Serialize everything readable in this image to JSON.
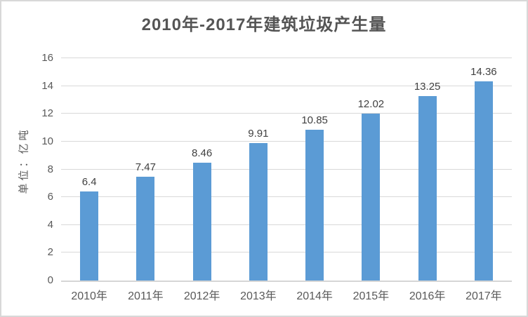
{
  "chart_data": {
    "type": "bar",
    "title": "2010年-2017年建筑垃圾产生量",
    "ylabel": "单位：亿吨",
    "xlabel": "",
    "categories": [
      "2010年",
      "2011年",
      "2012年",
      "2013年",
      "2014年",
      "2015年",
      "2016年",
      "2017年"
    ],
    "values": [
      6.4,
      7.47,
      8.46,
      9.91,
      10.85,
      12.02,
      13.25,
      14.36
    ],
    "value_labels": [
      "6.4",
      "7.47",
      "8.46",
      "9.91",
      "10.85",
      "12.02",
      "13.25",
      "14.36"
    ],
    "ylim": [
      0,
      16
    ],
    "yticks": [
      0,
      2,
      4,
      6,
      8,
      10,
      12,
      14,
      16
    ],
    "grid": true,
    "legend": "none",
    "colors": {
      "bar": "#5b9bd5",
      "gridline": "#d9d9d9",
      "axis_line": "#d6d6d6",
      "title_text": "#555555",
      "tick_text": "#595959",
      "data_label_text": "#404040",
      "frame_border": "#d8d8d8"
    }
  }
}
